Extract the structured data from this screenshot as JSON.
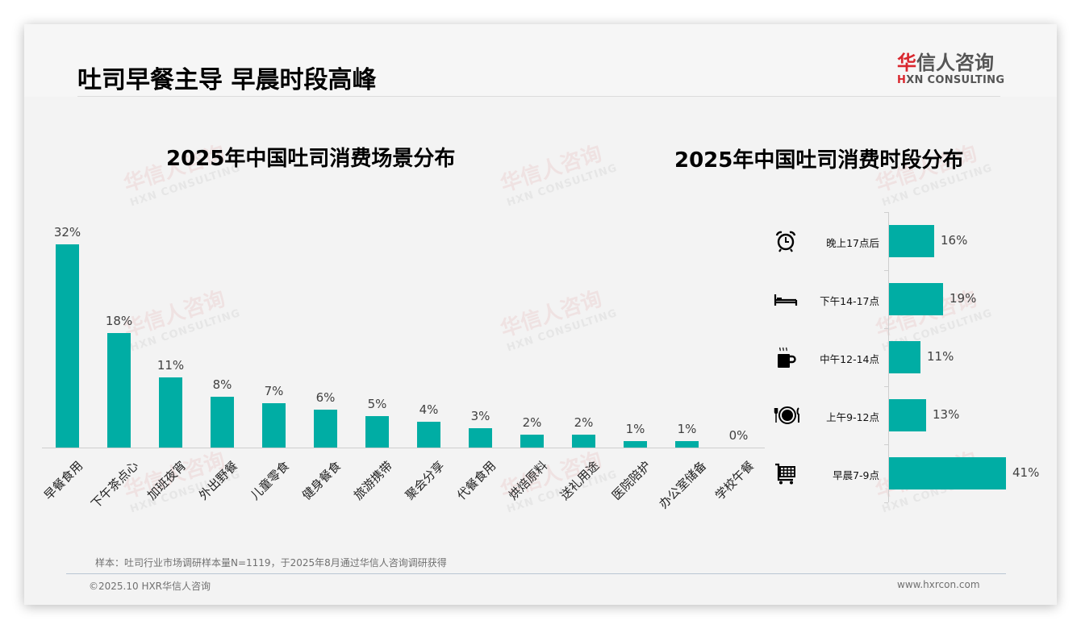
{
  "header": {
    "title": "吐司早餐主导 早晨时段高峰",
    "logo_cn_first": "华",
    "logo_cn_rest": "信人咨询",
    "logo_en_first": "H",
    "logo_en_rest": "XN CONSULTING"
  },
  "watermark": {
    "cn": "华信人咨询",
    "en": "HXN CONSULTING"
  },
  "chart_data": [
    {
      "type": "bar",
      "title": "2025年中国吐司消费场景分布",
      "xlabel": "",
      "ylabel": "",
      "categories": [
        "早餐食用",
        "下午茶点心",
        "加班夜宵",
        "外出野餐",
        "儿童零食",
        "健身餐食",
        "旅游携带",
        "聚会分享",
        "代餐食用",
        "烘焙原料",
        "送礼用途",
        "医院陪护",
        "办公室储备",
        "学校午餐"
      ],
      "values": [
        32,
        18,
        11,
        8,
        7,
        6,
        5,
        4,
        3,
        2,
        2,
        1,
        1,
        0
      ],
      "value_labels": [
        "32%",
        "18%",
        "11%",
        "8%",
        "7%",
        "6%",
        "5%",
        "4%",
        "3%",
        "2%",
        "2%",
        "1%",
        "1%",
        "0%"
      ],
      "unit": "%",
      "grid": false,
      "legend": "none",
      "color": "#00ada4"
    },
    {
      "type": "bar",
      "orientation": "horizontal",
      "title": "2025年中国吐司消费时段分布",
      "categories": [
        "晚上17点后",
        "下午14-17点",
        "中午12-14点",
        "上午9-12点",
        "早晨7-9点"
      ],
      "values": [
        16,
        19,
        11,
        13,
        41
      ],
      "value_labels": [
        "16%",
        "19%",
        "11%",
        "13%",
        "41%"
      ],
      "icons": [
        "alarm-clock-icon",
        "bed-icon",
        "coffee-mug-icon",
        "plate-cutlery-icon",
        "shopping-cart-icon"
      ],
      "unit": "%",
      "grid": false,
      "legend": "none",
      "color": "#00ada4"
    }
  ],
  "footer": {
    "note": "样本：吐司行业市场调研样本量N=1119，于2025年8月通过华信人咨询调研获得",
    "copyright": "©2025.10 HXR华信人咨询",
    "website": "www.hxrcon.com"
  }
}
